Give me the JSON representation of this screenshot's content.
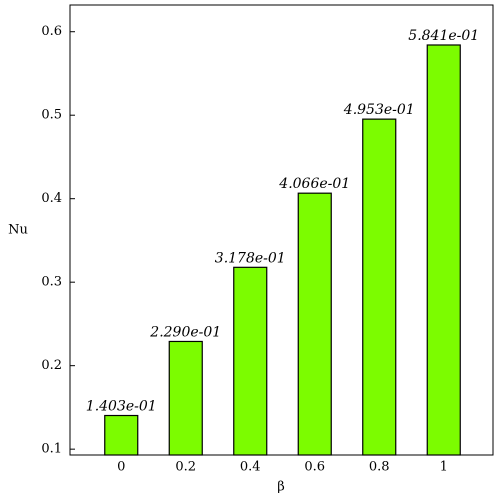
{
  "chart_data": {
    "type": "bar",
    "x_label": "β",
    "y_label": "Nu",
    "categories": [
      "0",
      "0.2",
      "0.4",
      "0.6",
      "0.8",
      "1"
    ],
    "values": [
      0.1403,
      0.229,
      0.3178,
      0.4066,
      0.4953,
      0.5841
    ],
    "value_labels": [
      "1.403e-01",
      "2.290e-01",
      "3.178e-01",
      "4.066e-01",
      "4.953e-01",
      "5.841e-01"
    ],
    "color": "#7cfc00",
    "ylim": [
      0.093,
      0.632
    ],
    "yticks": [
      0.1,
      0.2,
      0.3,
      0.4,
      0.5,
      0.6
    ]
  }
}
